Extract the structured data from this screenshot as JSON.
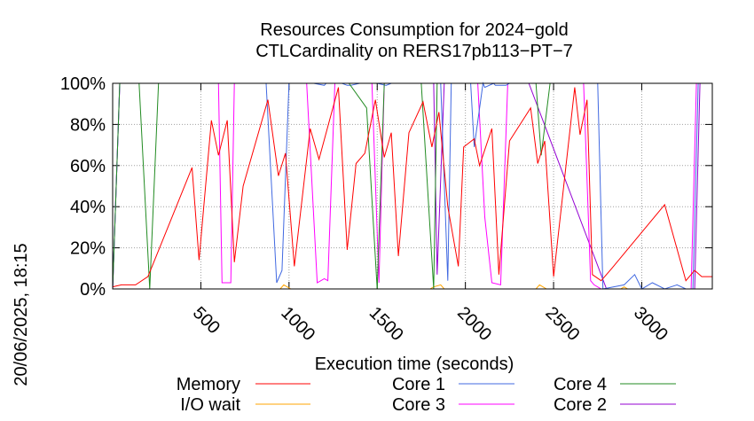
{
  "chart_data": {
    "type": "line",
    "title": "Resources Consumption for 2024−gold",
    "subtitle": "CTLCardinality on RERS17pb113−PT−7",
    "xlabel": "Execution time (seconds)",
    "ylabel": "",
    "side_label": "20/06/2025, 18:15",
    "xlim": [
      0,
      3400
    ],
    "ylim": [
      0,
      100
    ],
    "x_ticks": [
      500,
      1000,
      1500,
      2000,
      2500,
      3000
    ],
    "y_ticks": [
      0,
      20,
      40,
      60,
      80,
      100
    ],
    "y_tick_labels": [
      "0%",
      "20%",
      "40%",
      "60%",
      "80%",
      "100%"
    ],
    "grid": true,
    "legend_placement": "bottom",
    "series": [
      {
        "name": "Memory",
        "color": "#ff0000",
        "x": [
          0,
          50,
          130,
          200,
          450,
          490,
          560,
          600,
          650,
          690,
          740,
          880,
          940,
          980,
          1030,
          1120,
          1170,
          1280,
          1330,
          1380,
          1430,
          1490,
          1540,
          1580,
          1620,
          1680,
          1760,
          1810,
          1850,
          1900,
          1960,
          1990,
          2050,
          2080,
          2150,
          2190,
          2250,
          2370,
          2410,
          2450,
          2500,
          2620,
          2650,
          2690,
          2720,
          2770,
          2830,
          3130,
          3250,
          3300,
          3340,
          3400
        ],
        "y": [
          1,
          2,
          2,
          6,
          59,
          14,
          82,
          65,
          82,
          13,
          50,
          92,
          55,
          66,
          11,
          78,
          63,
          98,
          19,
          61,
          66,
          92,
          64,
          76,
          16,
          76,
          91,
          69,
          86,
          40,
          11,
          69,
          73,
          60,
          78,
          7,
          72,
          88,
          61,
          72,
          6,
          98,
          75,
          92,
          7,
          4,
          10,
          41,
          4,
          9,
          6,
          6
        ]
      },
      {
        "name": "I/O wait",
        "color": "#ffa500",
        "x": [
          0,
          950,
          970,
          990,
          1010,
          1800,
          1820,
          1860,
          1880,
          2400,
          2420,
          2440,
          2460,
          2880,
          2900,
          2920,
          3400
        ],
        "y": [
          0,
          0,
          2,
          1,
          0,
          0,
          1,
          2,
          0,
          0,
          2,
          1,
          0,
          0,
          1,
          0,
          0
        ]
      },
      {
        "name": "Core 1",
        "color": "#4169e1",
        "x": [
          0,
          40,
          870,
          930,
          960,
          1000,
          1080,
          1100,
          1140,
          1200,
          1210,
          1270,
          1300,
          1330,
          1350,
          1400,
          1420,
          1500,
          1550,
          1580,
          1620,
          1680,
          1780,
          1820,
          1860,
          1900,
          1920,
          1980,
          2000,
          2030,
          2050,
          2100,
          2110,
          2160,
          2170,
          2230,
          2250,
          2420,
          2440,
          2480,
          2660,
          2700,
          2710,
          2750,
          2780,
          2900,
          2960,
          3000,
          3060,
          3130,
          3200,
          3250,
          3290,
          3320,
          3400
        ],
        "y": [
          0,
          100,
          100,
          3,
          9,
          100,
          100,
          100,
          100,
          99,
          100,
          100,
          100,
          99,
          99,
          100,
          100,
          100,
          99,
          100,
          100,
          100,
          100,
          100,
          100,
          4,
          100,
          100,
          100,
          100,
          69,
          100,
          98,
          100,
          99,
          99,
          100,
          100,
          100,
          100,
          100,
          100,
          100,
          100,
          0,
          2,
          7,
          0,
          3,
          0,
          2,
          0,
          0,
          100,
          100
        ]
      },
      {
        "name": "Core 2",
        "color": "#9400d3",
        "x": [
          0,
          40,
          1070,
          1100,
          1200,
          1230,
          1450,
          1480,
          1820,
          1840,
          1880,
          1900,
          2000,
          2300,
          2340,
          2360,
          2800,
          3300,
          3330,
          3400
        ],
        "y": [
          0,
          100,
          100,
          100,
          100,
          100,
          100,
          100,
          100,
          7,
          100,
          100,
          100,
          100,
          100,
          100,
          0,
          0,
          100,
          100
        ]
      },
      {
        "name": "Core 3",
        "color": "#ff00ff",
        "x": [
          0,
          40,
          210,
          225,
          600,
          620,
          670,
          690,
          1060,
          1100,
          1160,
          1200,
          1220,
          1260,
          1330,
          1380,
          1430,
          1470,
          1510,
          1540,
          1580,
          1600,
          1700,
          1760,
          1800,
          1860,
          1900,
          1960,
          1980,
          2020,
          2050,
          2070,
          2110,
          2150,
          2200,
          2240,
          2270,
          2390,
          2420,
          2450,
          2560,
          2600,
          2640,
          2670,
          2710,
          2730,
          2770,
          2800,
          3280,
          3310,
          3400
        ],
        "y": [
          0,
          100,
          100,
          100,
          100,
          3,
          3,
          100,
          100,
          100,
          3,
          5,
          4,
          100,
          100,
          100,
          100,
          100,
          3,
          100,
          100,
          100,
          100,
          100,
          100,
          100,
          100,
          100,
          100,
          100,
          100,
          100,
          35,
          3,
          2,
          100,
          100,
          100,
          100,
          100,
          100,
          100,
          100,
          100,
          4,
          2,
          0,
          0,
          0,
          100,
          100
        ]
      },
      {
        "name": "Core 4",
        "color": "#228b22",
        "x": [
          0,
          40,
          80,
          150,
          210,
          260,
          1270,
          1340,
          1440,
          1500,
          1540,
          1750,
          1820,
          1840,
          2100,
          2400,
          2430,
          2480,
          2520,
          3400
        ],
        "y": [
          0,
          100,
          100,
          100,
          0,
          100,
          100,
          100,
          88,
          0,
          100,
          100,
          0,
          100,
          100,
          100,
          65,
          100,
          100,
          100
        ]
      }
    ]
  }
}
